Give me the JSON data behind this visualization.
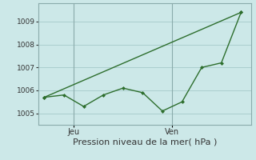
{
  "line1_x": [
    0,
    1,
    2,
    3,
    4,
    5,
    6,
    7,
    8,
    9,
    10
  ],
  "line1_y": [
    1005.7,
    1005.8,
    1005.3,
    1005.8,
    1006.1,
    1005.9,
    1005.1,
    1005.5,
    1007.0,
    1007.2,
    1009.4
  ],
  "line2_x": [
    0,
    10
  ],
  "line2_y": [
    1005.7,
    1009.4
  ],
  "line_color": "#2d6e2d",
  "bg_color": "#cce8e8",
  "grid_color": "#aacece",
  "xlabel": "Pression niveau de la mer( hPa )",
  "xlabel_fontsize": 8,
  "ylim": [
    1004.5,
    1009.8
  ],
  "yticks": [
    1005,
    1006,
    1007,
    1008,
    1009
  ],
  "day_label_jeu": "Jeu",
  "day_label_ven": "Ven",
  "vline_x1": 1.5,
  "vline_x2": 6.5,
  "xlim": [
    -0.3,
    10.5
  ]
}
